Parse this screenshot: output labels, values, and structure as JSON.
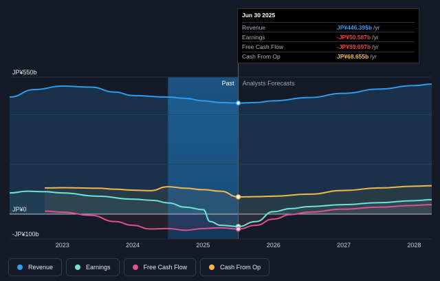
{
  "tooltip": {
    "date": "Jun 30 2025",
    "rows": [
      {
        "label": "Revenue",
        "value": "JP¥446.395b",
        "unit": "/yr",
        "color": "#2f9bf0"
      },
      {
        "label": "Earnings",
        "value": "-JP¥50.587b",
        "unit": "/yr",
        "color": "#e8404a"
      },
      {
        "label": "Free Cash Flow",
        "value": "-JP¥59.697b",
        "unit": "/yr",
        "color": "#e8404a"
      },
      {
        "label": "Cash From Op",
        "value": "JP¥68.655b",
        "unit": "/yr",
        "color": "#f2b84a"
      }
    ]
  },
  "legend": [
    {
      "label": "Revenue",
      "color": "#2f9bf0"
    },
    {
      "label": "Earnings",
      "color": "#6fe3d6"
    },
    {
      "label": "Free Cash Flow",
      "color": "#e0508c"
    },
    {
      "label": "Cash From Op",
      "color": "#f2b84a"
    }
  ],
  "chart_data": {
    "type": "area",
    "y_axis_labels": [
      "JP¥550b",
      "JP¥0",
      "-JP¥100b"
    ],
    "ylim": [
      -100,
      550
    ],
    "xlim": [
      2022.25,
      2028.25
    ],
    "x_ticks": [
      2023,
      2024,
      2025,
      2026,
      2027,
      2028
    ],
    "x_tick_labels": [
      "2023",
      "2024",
      "2025",
      "2026",
      "2027",
      "2028"
    ],
    "divider_x": 2025.5,
    "past_label": "Past",
    "forecast_label": "Analysts Forecasts",
    "series": [
      {
        "name": "Revenue",
        "color": "#2f9bf0",
        "points": [
          [
            2022.25,
            470
          ],
          [
            2022.6,
            500
          ],
          [
            2023,
            514
          ],
          [
            2023.4,
            510
          ],
          [
            2023.75,
            490
          ],
          [
            2024,
            476
          ],
          [
            2024.5,
            470
          ],
          [
            2024.75,
            465
          ],
          [
            2025,
            455
          ],
          [
            2025.25,
            448
          ],
          [
            2025.5,
            446
          ],
          [
            2025.75,
            448
          ],
          [
            2026,
            455
          ],
          [
            2026.5,
            468
          ],
          [
            2027,
            485
          ],
          [
            2027.5,
            502
          ],
          [
            2028,
            516
          ],
          [
            2028.25,
            522
          ]
        ]
      },
      {
        "name": "Earnings",
        "color": "#6fe3d6",
        "points": [
          [
            2022.25,
            85
          ],
          [
            2022.5,
            92
          ],
          [
            2022.75,
            90
          ],
          [
            2023,
            85
          ],
          [
            2023.5,
            72
          ],
          [
            2024,
            60
          ],
          [
            2024.3,
            55
          ],
          [
            2024.5,
            45
          ],
          [
            2024.75,
            28
          ],
          [
            2025,
            18
          ],
          [
            2025.1,
            -30
          ],
          [
            2025.25,
            -45
          ],
          [
            2025.5,
            -50
          ],
          [
            2025.75,
            -30
          ],
          [
            2026,
            10
          ],
          [
            2026.25,
            22
          ],
          [
            2026.5,
            30
          ],
          [
            2027,
            38
          ],
          [
            2027.5,
            46
          ],
          [
            2028,
            54
          ],
          [
            2028.25,
            58
          ]
        ]
      },
      {
        "name": "Free Cash Flow",
        "color": "#e0508c",
        "points": [
          [
            2022.75,
            12
          ],
          [
            2023,
            8
          ],
          [
            2023.4,
            -5
          ],
          [
            2023.75,
            -30
          ],
          [
            2024,
            -45
          ],
          [
            2024.25,
            -60
          ],
          [
            2024.5,
            -58
          ],
          [
            2024.75,
            -65
          ],
          [
            2025,
            -58
          ],
          [
            2025.25,
            -55
          ],
          [
            2025.5,
            -60
          ],
          [
            2025.75,
            -45
          ],
          [
            2026,
            -20
          ],
          [
            2026.25,
            -2
          ],
          [
            2026.5,
            8
          ],
          [
            2027,
            20
          ],
          [
            2027.5,
            28
          ],
          [
            2028,
            35
          ],
          [
            2028.25,
            38
          ]
        ]
      },
      {
        "name": "Cash From Op",
        "color": "#f2b84a",
        "points": [
          [
            2022.75,
            105
          ],
          [
            2023,
            106
          ],
          [
            2023.5,
            104
          ],
          [
            2023.75,
            100
          ],
          [
            2024,
            96
          ],
          [
            2024.25,
            94
          ],
          [
            2024.5,
            110
          ],
          [
            2024.75,
            104
          ],
          [
            2025,
            98
          ],
          [
            2025.25,
            92
          ],
          [
            2025.5,
            69
          ],
          [
            2025.75,
            70
          ],
          [
            2026,
            72
          ],
          [
            2026.5,
            80
          ],
          [
            2027,
            95
          ],
          [
            2027.5,
            105
          ],
          [
            2028,
            112
          ],
          [
            2028.25,
            114
          ]
        ]
      }
    ]
  }
}
